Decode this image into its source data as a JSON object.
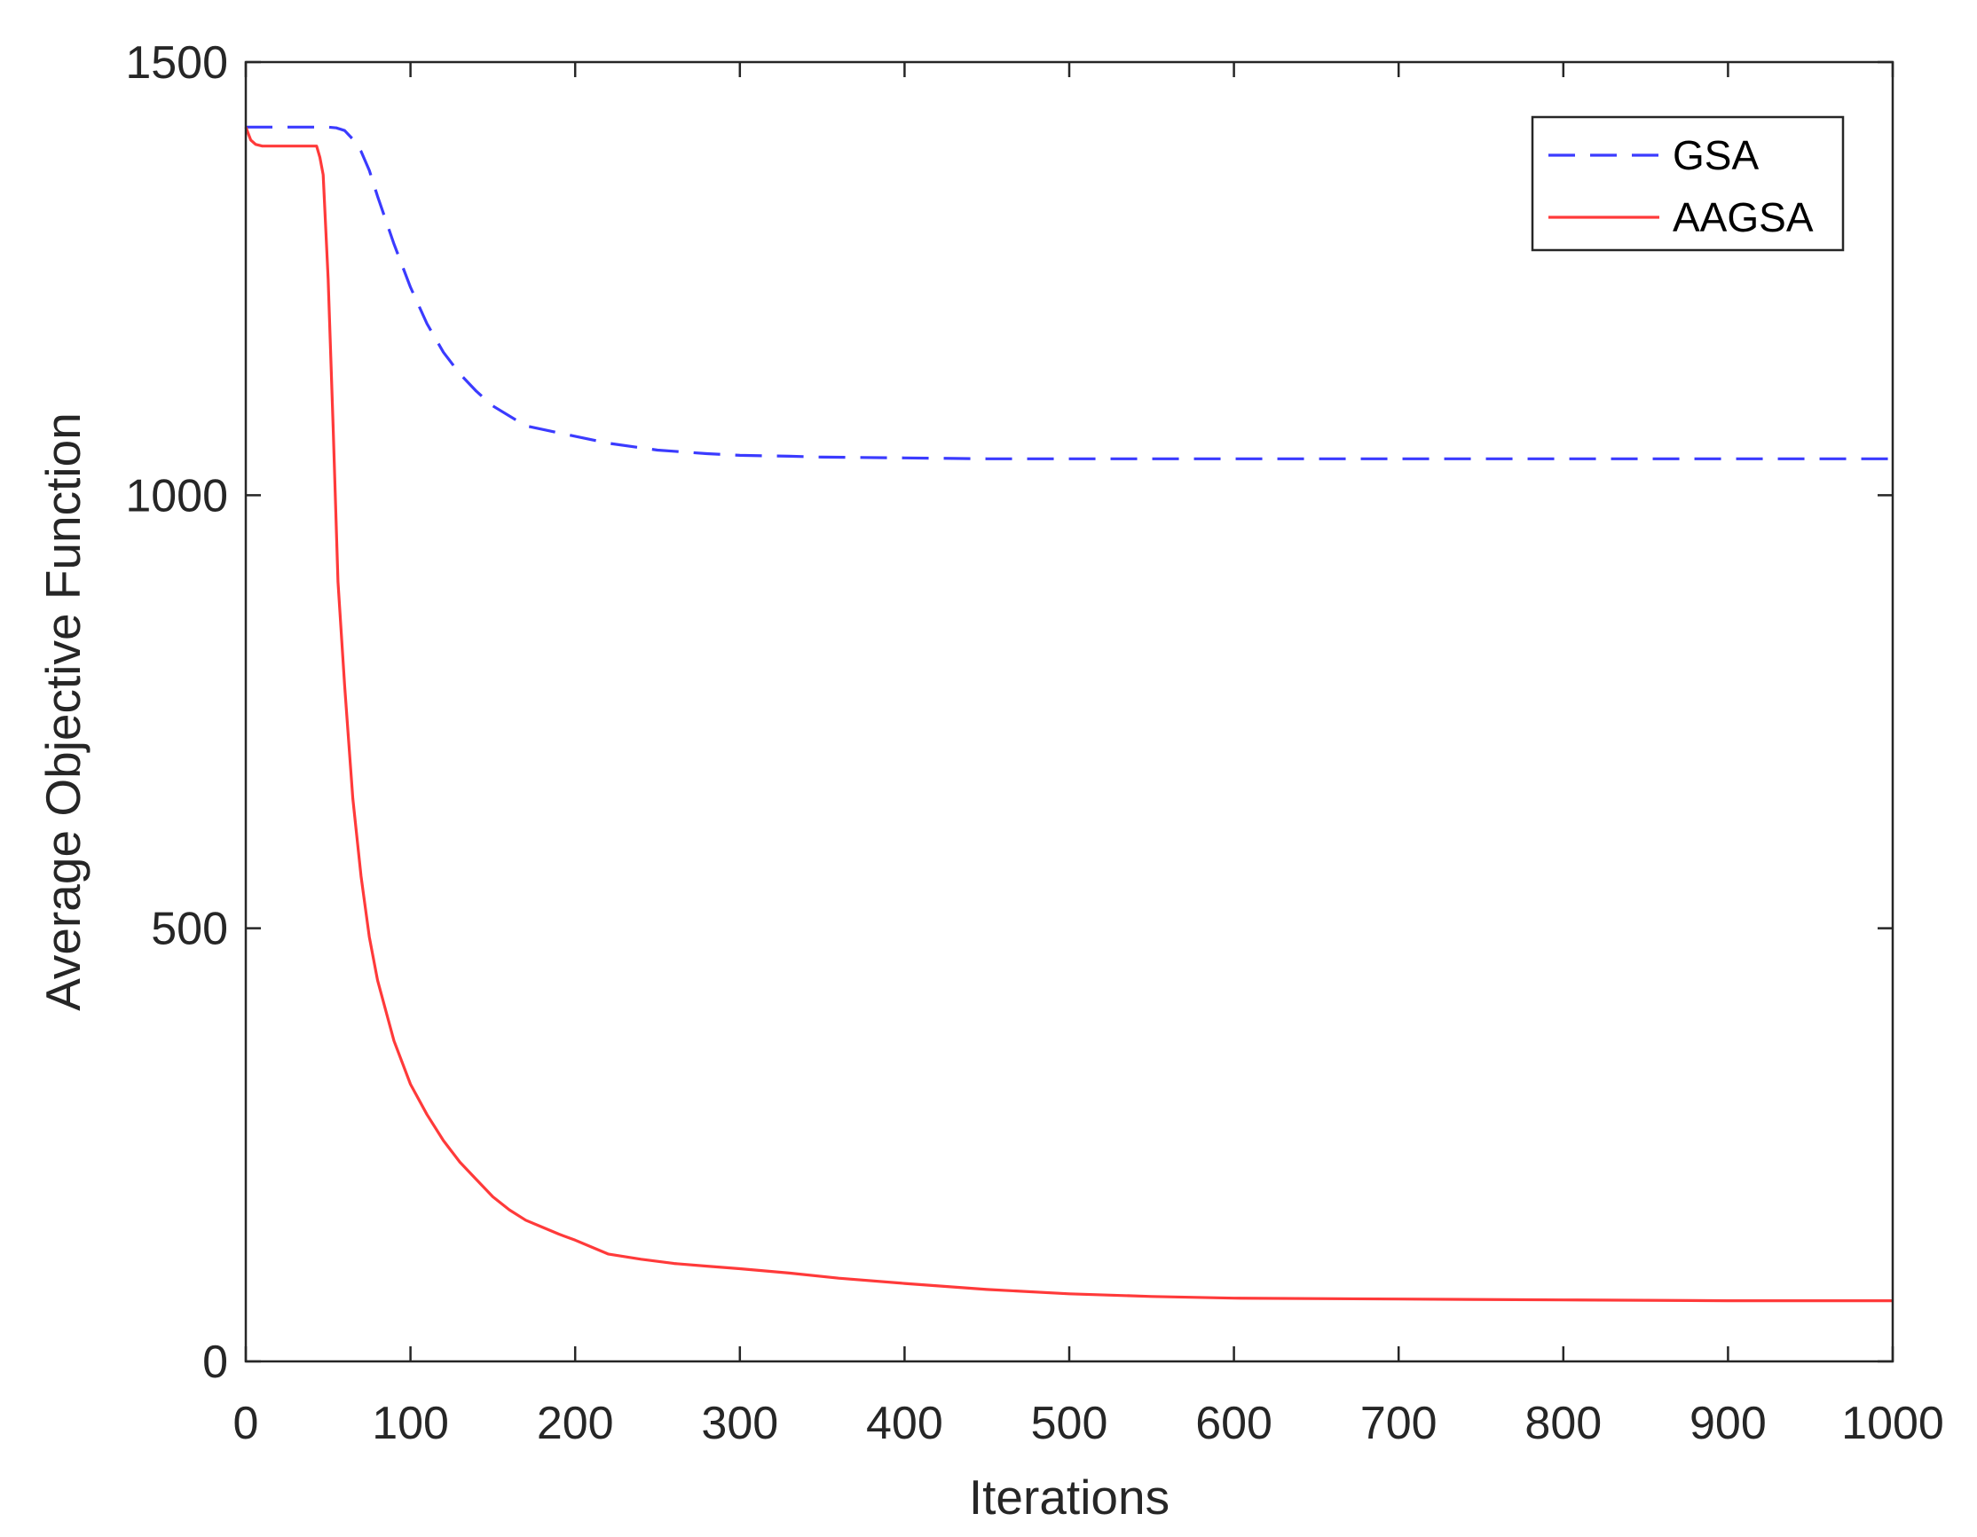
{
  "chart_data": {
    "type": "line",
    "title": "",
    "xlabel": "Iterations",
    "ylabel": "Average Objective Function",
    "xlim": [
      0,
      1000
    ],
    "ylim": [
      0,
      1500
    ],
    "xticks": [
      0,
      100,
      200,
      300,
      400,
      500,
      600,
      700,
      800,
      900,
      1000
    ],
    "yticks": [
      0,
      500,
      1000,
      1500
    ],
    "x_tick_labels": [
      "0",
      "100",
      "200",
      "300",
      "400",
      "500",
      "600",
      "700",
      "800",
      "900",
      "1000"
    ],
    "y_tick_labels": [
      "0",
      "500",
      "1000",
      "1500"
    ],
    "grid": false,
    "legend": {
      "position": "top-right",
      "entries": [
        "GSA",
        "AAGSA"
      ]
    },
    "series": [
      {
        "name": "GSA",
        "color": "#3b3bff",
        "style": "dashed",
        "x": [
          0,
          20,
          40,
          50,
          55,
          60,
          65,
          70,
          75,
          80,
          90,
          100,
          110,
          120,
          130,
          140,
          150,
          170,
          200,
          220,
          250,
          280,
          300,
          330,
          350,
          400,
          450,
          500,
          600,
          700,
          800,
          900,
          1000
        ],
        "y": [
          1425,
          1425,
          1425,
          1425,
          1424,
          1421,
          1411,
          1397,
          1375,
          1345,
          1290,
          1240,
          1198,
          1165,
          1140,
          1120,
          1103,
          1080,
          1068,
          1060,
          1052,
          1048,
          1046,
          1045,
          1044,
          1043,
          1042,
          1042,
          1042,
          1042,
          1042,
          1042,
          1042
        ]
      },
      {
        "name": "AAGSA",
        "color": "#ff3a3a",
        "style": "solid",
        "x": [
          0,
          3,
          6,
          10,
          20,
          30,
          40,
          43,
          45,
          47,
          50,
          53,
          56,
          60,
          65,
          70,
          75,
          80,
          90,
          100,
          110,
          120,
          130,
          140,
          150,
          160,
          170,
          180,
          190,
          200,
          210,
          220,
          240,
          260,
          280,
          300,
          330,
          360,
          400,
          450,
          500,
          550,
          600,
          700,
          800,
          900,
          1000
        ],
        "y": [
          1425,
          1410,
          1405,
          1403,
          1403,
          1403,
          1403,
          1403,
          1390,
          1370,
          1250,
          1080,
          900,
          780,
          650,
          560,
          490,
          440,
          370,
          320,
          285,
          255,
          230,
          210,
          190,
          175,
          163,
          155,
          147,
          140,
          132,
          124,
          118,
          113,
          110,
          107,
          102,
          96,
          90,
          83,
          78,
          75,
          73,
          72,
          71,
          70,
          70
        ]
      }
    ]
  }
}
